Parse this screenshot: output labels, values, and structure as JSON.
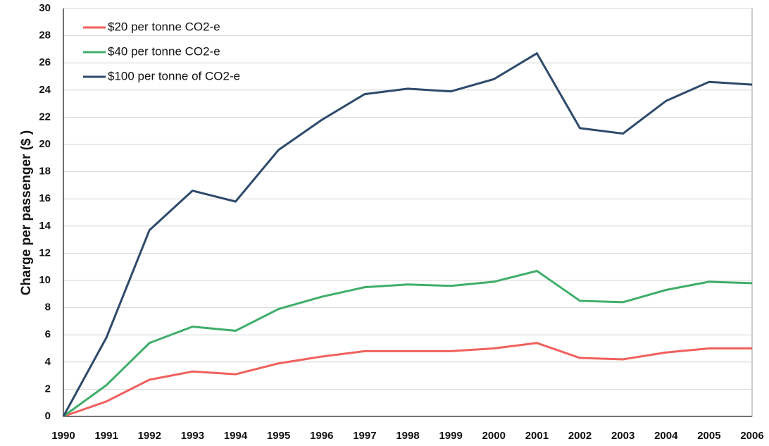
{
  "chart_data": {
    "type": "line",
    "y_label": "Charge per passenger ($ )",
    "categories": [
      "1990",
      "1991",
      "1992",
      "1993",
      "1994",
      "1995",
      "1996",
      "1997",
      "1998",
      "1999",
      "2000",
      "2001",
      "2002",
      "2003",
      "2004",
      "2005",
      "2006"
    ],
    "series": [
      {
        "name": "$20 per tonne CO2-e",
        "color": "#f0605e",
        "values": [
          0,
          1.1,
          2.7,
          3.3,
          3.1,
          3.9,
          4.4,
          4.8,
          4.8,
          4.8,
          5.0,
          5.4,
          4.3,
          4.2,
          4.7,
          5.0,
          5.0
        ]
      },
      {
        "name": "$40 per tonne CO2-e",
        "color": "#3fae6a",
        "values": [
          0,
          2.3,
          5.4,
          6.6,
          6.3,
          7.9,
          8.8,
          9.5,
          9.7,
          9.6,
          9.9,
          10.7,
          8.5,
          8.4,
          9.3,
          9.9,
          9.8
        ]
      },
      {
        "name": "$100 per tonne of CO2-e",
        "color": "#2d4a6b",
        "values": [
          0,
          5.8,
          13.7,
          16.6,
          15.8,
          19.6,
          21.8,
          23.7,
          24.1,
          23.9,
          24.8,
          26.7,
          21.2,
          20.8,
          23.2,
          24.6,
          24.4
        ]
      }
    ],
    "ylim": [
      0,
      30
    ],
    "yticks": [
      0,
      2,
      4,
      6,
      8,
      10,
      12,
      14,
      16,
      18,
      20,
      22,
      24,
      26,
      28,
      30
    ],
    "grid": true,
    "legend": "top-left"
  }
}
